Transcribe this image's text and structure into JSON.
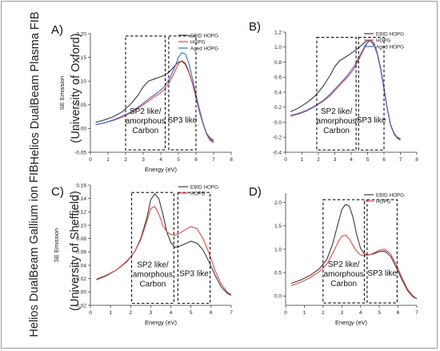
{
  "row_labels": [
    {
      "line1": "Helios DualBeam Plasma FIB",
      "line2": "(University of Oxford)"
    },
    {
      "line1": "Helios DualBeam Gallium ion FIB",
      "line2": "(University of Sheffield)"
    }
  ],
  "series_colors": {
    "EBID HOPG": "#3a3a3a",
    "HOPG": "#e8473c",
    "Aged HOPG": "#2f6fd8"
  },
  "chart_data": [
    {
      "type": "line",
      "panel_label": "A)",
      "xlabel": "Energy (eV)",
      "ylabel": "SE Emission",
      "xlim": [
        0,
        8
      ],
      "ylim": [
        -0.05,
        0.2
      ],
      "xticks": [
        0,
        1,
        2,
        3,
        4,
        5,
        6,
        7,
        8
      ],
      "yticks": [
        -0.05,
        0.0,
        0.05,
        0.1,
        0.15,
        0.2
      ],
      "ytick_labels": [
        "-0.05",
        "0.00",
        "0.05",
        "0.10",
        "0.15",
        "0.20"
      ],
      "legend": [
        "EBID HOPG",
        "HOPG",
        "Aged HOPG"
      ],
      "legend_position": "top-right",
      "regions": [
        {
          "label": [
            "SP2 like/",
            "amorphous",
            "Carbon"
          ],
          "x": [
            2.0,
            4.25
          ],
          "y": [
            -0.045,
            0.195
          ]
        },
        {
          "label": [
            "SP3 like"
          ],
          "x": [
            4.45,
            6.0
          ],
          "y": [
            -0.045,
            0.195
          ]
        }
      ],
      "series": [
        {
          "name": "EBID HOPG",
          "x": [
            0.3,
            0.8,
            1.3,
            1.8,
            2.3,
            2.7,
            3.0,
            3.3,
            3.6,
            3.9,
            4.2,
            4.5,
            4.8,
            5.0,
            5.2,
            5.4,
            5.6,
            5.8,
            6.0,
            6.2,
            6.4,
            6.6,
            6.8,
            7.0
          ],
          "y": [
            0.013,
            0.018,
            0.025,
            0.035,
            0.052,
            0.07,
            0.088,
            0.1,
            0.104,
            0.108,
            0.112,
            0.12,
            0.132,
            0.14,
            0.142,
            0.135,
            0.118,
            0.095,
            0.065,
            0.035,
            0.01,
            -0.01,
            -0.02,
            -0.025
          ]
        },
        {
          "name": "HOPG",
          "x": [
            0.3,
            0.8,
            1.3,
            1.8,
            2.3,
            2.7,
            3.0,
            3.3,
            3.6,
            3.9,
            4.2,
            4.5,
            4.8,
            5.0,
            5.2,
            5.4,
            5.6,
            5.8,
            6.0,
            6.2,
            6.4,
            6.6,
            6.8,
            7.0
          ],
          "y": [
            0.008,
            0.012,
            0.017,
            0.024,
            0.033,
            0.042,
            0.05,
            0.058,
            0.066,
            0.073,
            0.082,
            0.098,
            0.12,
            0.136,
            0.143,
            0.138,
            0.12,
            0.095,
            0.065,
            0.035,
            0.01,
            -0.012,
            -0.025,
            -0.03
          ]
        },
        {
          "name": "Aged HOPG",
          "x": [
            0.3,
            0.8,
            1.3,
            1.8,
            2.3,
            2.7,
            3.0,
            3.3,
            3.6,
            3.9,
            4.2,
            4.5,
            4.8,
            5.0,
            5.2,
            5.4,
            5.6,
            5.8,
            6.0,
            6.2,
            6.4,
            6.6,
            6.8,
            7.0
          ],
          "y": [
            0.008,
            0.012,
            0.018,
            0.026,
            0.035,
            0.045,
            0.053,
            0.062,
            0.07,
            0.078,
            0.088,
            0.105,
            0.13,
            0.15,
            0.16,
            0.157,
            0.137,
            0.105,
            0.072,
            0.04,
            0.012,
            -0.01,
            -0.022,
            -0.028
          ]
        }
      ]
    },
    {
      "type": "line",
      "panel_label": "B)",
      "xlabel": "",
      "ylabel": "",
      "xlim": [
        0,
        8
      ],
      "ylim": [
        -0.4,
        1.2
      ],
      "xticks": [
        0,
        1,
        2,
        3,
        4,
        5,
        6,
        7,
        8
      ],
      "yticks": [
        -0.4,
        -0.2,
        0.0,
        0.2,
        0.4,
        0.6,
        0.8,
        1.0,
        1.2
      ],
      "ytick_labels": [
        "-0.4",
        "-0.2",
        "0.0",
        "0.2",
        "0.4",
        "0.6",
        "0.8",
        "1.0",
        "1.2"
      ],
      "legend": [
        "EBID HOPG",
        "HOPG",
        "Aged HOPG"
      ],
      "legend_position": "top-right",
      "regions": [
        {
          "label": [
            "SP2 like/",
            "amorphous",
            "Carbon"
          ],
          "x": [
            1.9,
            4.3
          ],
          "y": [
            -0.37,
            1.13
          ]
        },
        {
          "label": [
            "SP3 like"
          ],
          "x": [
            4.45,
            6.0
          ],
          "y": [
            -0.37,
            1.13
          ]
        }
      ],
      "series": [
        {
          "name": "EBID HOPG",
          "x": [
            0.3,
            0.8,
            1.3,
            1.8,
            2.3,
            2.7,
            3.0,
            3.3,
            3.6,
            3.9,
            4.2,
            4.5,
            4.8,
            5.0,
            5.2,
            5.4,
            5.6,
            5.8,
            6.0,
            6.2,
            6.4,
            6.6,
            6.8,
            7.0
          ],
          "y": [
            0.14,
            0.19,
            0.26,
            0.35,
            0.48,
            0.62,
            0.74,
            0.82,
            0.86,
            0.9,
            0.95,
            1.0,
            1.06,
            1.09,
            1.08,
            1.02,
            0.9,
            0.7,
            0.45,
            0.18,
            -0.03,
            -0.14,
            -0.2,
            -0.22
          ]
        },
        {
          "name": "HOPG",
          "x": [
            0.3,
            0.8,
            1.3,
            1.8,
            2.3,
            2.7,
            3.0,
            3.3,
            3.6,
            3.9,
            4.2,
            4.5,
            4.8,
            5.0,
            5.2,
            5.4,
            5.6,
            5.8,
            6.0,
            6.2,
            6.4,
            6.6,
            6.8,
            7.0
          ],
          "y": [
            0.08,
            0.11,
            0.15,
            0.21,
            0.28,
            0.35,
            0.42,
            0.49,
            0.56,
            0.63,
            0.72,
            0.85,
            0.98,
            1.06,
            1.09,
            1.05,
            0.92,
            0.72,
            0.46,
            0.19,
            -0.03,
            -0.15,
            -0.21,
            -0.24
          ]
        },
        {
          "name": "Aged HOPG",
          "x": [
            0.3,
            0.8,
            1.3,
            1.8,
            2.3,
            2.7,
            3.0,
            3.3,
            3.6,
            3.9,
            4.2,
            4.5,
            4.8,
            5.0,
            5.2,
            5.4,
            5.6,
            5.8,
            6.0,
            6.2,
            6.4,
            6.6,
            6.8,
            7.0
          ],
          "y": [
            0.09,
            0.12,
            0.16,
            0.22,
            0.29,
            0.37,
            0.44,
            0.51,
            0.58,
            0.66,
            0.75,
            0.88,
            1.0,
            1.07,
            1.08,
            1.03,
            0.9,
            0.7,
            0.44,
            0.18,
            -0.04,
            -0.15,
            -0.21,
            -0.23
          ]
        }
      ]
    },
    {
      "type": "line",
      "panel_label": "C)",
      "xlabel": "Energy (eV)",
      "ylabel": "SE Emission",
      "xlim": [
        0,
        7
      ],
      "ylim": [
        -0.02,
        0.16
      ],
      "xticks": [
        0,
        1,
        2,
        3,
        4,
        5,
        6,
        7
      ],
      "yticks": [
        -0.02,
        0.0,
        0.02,
        0.04,
        0.06,
        0.08,
        0.1,
        0.12,
        0.14,
        0.16
      ],
      "ytick_labels": [
        "-0.02",
        "0.00",
        "0.02",
        "0.04",
        "0.06",
        "0.08",
        "0.10",
        "0.12",
        "0.14",
        "0.16"
      ],
      "legend": [
        "EBID HOPG",
        "HOPG"
      ],
      "legend_position": "top-right",
      "regions": [
        {
          "label": [
            "SP2 like/",
            "amorphous",
            "Carbon"
          ],
          "x": [
            2.05,
            4.15
          ],
          "y": [
            -0.017,
            0.149
          ]
        },
        {
          "label": [
            "SP3 like"
          ],
          "x": [
            4.35,
            5.95
          ],
          "y": [
            -0.017,
            0.149
          ]
        }
      ],
      "series": [
        {
          "name": "EBID HOPG",
          "x": [
            0.3,
            0.8,
            1.3,
            1.8,
            2.2,
            2.5,
            2.8,
            3.0,
            3.2,
            3.4,
            3.6,
            3.8,
            4.0,
            4.2,
            4.4,
            4.7,
            5.0,
            5.3,
            5.6,
            5.9,
            6.2,
            6.5,
            6.8,
            7.0
          ],
          "y": [
            0.019,
            0.025,
            0.033,
            0.045,
            0.06,
            0.08,
            0.11,
            0.138,
            0.147,
            0.14,
            0.117,
            0.09,
            0.074,
            0.067,
            0.068,
            0.072,
            0.076,
            0.073,
            0.063,
            0.045,
            0.025,
            0.008,
            -0.002,
            -0.005
          ]
        },
        {
          "name": "HOPG",
          "x": [
            0.3,
            0.8,
            1.3,
            1.8,
            2.2,
            2.5,
            2.8,
            3.0,
            3.2,
            3.4,
            3.6,
            3.8,
            4.0,
            4.2,
            4.4,
            4.7,
            5.0,
            5.3,
            5.6,
            5.9,
            6.2,
            6.5,
            6.8,
            7.0
          ],
          "y": [
            0.018,
            0.024,
            0.033,
            0.046,
            0.06,
            0.078,
            0.105,
            0.125,
            0.128,
            0.117,
            0.1,
            0.09,
            0.086,
            0.085,
            0.087,
            0.093,
            0.098,
            0.095,
            0.08,
            0.058,
            0.032,
            0.012,
            0.0,
            -0.004
          ]
        }
      ]
    },
    {
      "type": "line",
      "panel_label": "D)",
      "xlabel": "Energy (eV)",
      "ylabel": "",
      "xlim": [
        0,
        7
      ],
      "ylim": [
        -0.2,
        2.2
      ],
      "xticks": [
        0,
        1,
        2,
        3,
        4,
        5,
        6,
        7
      ],
      "yticks": [
        0.0,
        0.5,
        1.0,
        1.5,
        2.0
      ],
      "ytick_labels": [
        "0.0",
        "0.5",
        "1.0",
        "1.5",
        "2.0"
      ],
      "legend": [
        "EBID HOPG",
        "HOPG"
      ],
      "legend_position": "top-right",
      "regions": [
        {
          "label": [
            "SP2 like/",
            "amorphous",
            "Carbon"
          ],
          "x": [
            2.0,
            4.2
          ],
          "y": [
            -0.15,
            2.06
          ]
        },
        {
          "label": [
            "SP3 like"
          ],
          "x": [
            4.35,
            5.95
          ],
          "y": [
            -0.15,
            2.06
          ]
        }
      ],
      "series": [
        {
          "name": "EBID HOPG",
          "x": [
            0.3,
            0.8,
            1.3,
            1.8,
            2.2,
            2.5,
            2.8,
            3.0,
            3.2,
            3.4,
            3.6,
            3.8,
            4.0,
            4.2,
            4.4,
            4.7,
            5.0,
            5.3,
            5.6,
            5.9,
            6.2,
            6.5,
            6.8,
            7.0
          ],
          "y": [
            0.27,
            0.34,
            0.44,
            0.58,
            0.78,
            1.1,
            1.55,
            1.85,
            1.96,
            1.92,
            1.68,
            1.3,
            1.02,
            0.9,
            0.88,
            0.9,
            0.95,
            0.96,
            0.85,
            0.62,
            0.35,
            0.12,
            -0.02,
            -0.06
          ]
        },
        {
          "name": "HOPG",
          "x": [
            0.3,
            0.8,
            1.3,
            1.8,
            2.2,
            2.5,
            2.8,
            3.0,
            3.2,
            3.4,
            3.6,
            3.8,
            4.0,
            4.2,
            4.4,
            4.7,
            5.0,
            5.3,
            5.6,
            5.9,
            6.2,
            6.5,
            6.8,
            7.0
          ],
          "y": [
            0.22,
            0.29,
            0.39,
            0.52,
            0.68,
            0.9,
            1.15,
            1.28,
            1.3,
            1.22,
            1.08,
            0.95,
            0.88,
            0.86,
            0.87,
            0.92,
            0.98,
            1.0,
            0.9,
            0.68,
            0.4,
            0.15,
            0.0,
            -0.05
          ]
        }
      ]
    }
  ]
}
